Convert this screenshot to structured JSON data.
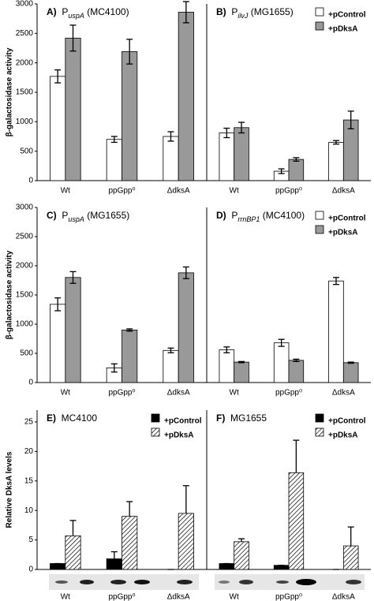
{
  "chart_data": [
    {
      "type": "bar",
      "panel": "A)",
      "title": "P",
      "title_sub": "uspA",
      "title_suffix": "(MC4100)",
      "ylabel": "β-galactosidase activity",
      "categories": [
        "Wt",
        "ppGpp⁰",
        "ΔdksA"
      ],
      "ylim": [
        0,
        3000
      ],
      "yticks": [
        0,
        500,
        1000,
        1500,
        2000,
        2500,
        3000
      ],
      "error_style": "both",
      "series": [
        {
          "color": "#ffffff",
          "values": [
            1770,
            700,
            750
          ],
          "errors": [
            110,
            50,
            80
          ]
        },
        {
          "color": "#999999",
          "values": [
            2420,
            2190,
            2860
          ],
          "errors": [
            220,
            210,
            180
          ]
        }
      ]
    },
    {
      "type": "bar",
      "panel": "B)",
      "title": "P",
      "title_sub": "ilvJ",
      "title_suffix": "(MG1655)",
      "legend": "upper right",
      "categories": [
        "Wt",
        "ppGpp⁰",
        "ΔdksA"
      ],
      "ylim": [
        0,
        3000
      ],
      "error_style": "both",
      "series": [
        {
          "name": "+pControl",
          "color": "#ffffff",
          "values": [
            810,
            160,
            650
          ],
          "errors": [
            80,
            40,
            30
          ]
        },
        {
          "name": "+pDksA",
          "color": "#999999",
          "values": [
            900,
            360,
            1030
          ],
          "errors": [
            90,
            30,
            150
          ]
        }
      ]
    },
    {
      "type": "bar",
      "panel": "C)",
      "title": "P",
      "title_sub": "uspA",
      "title_suffix": "(MG1655)",
      "ylabel": "β-galactosidase activity",
      "categories": [
        "Wt",
        "ppGpp⁰",
        "ΔdksA"
      ],
      "ylim": [
        0,
        3000
      ],
      "yticks": [
        0,
        500,
        1000,
        1500,
        2000,
        2500,
        3000
      ],
      "error_style": "both",
      "series": [
        {
          "color": "#ffffff",
          "values": [
            1340,
            250,
            550
          ],
          "errors": [
            110,
            70,
            40
          ]
        },
        {
          "color": "#999999",
          "values": [
            1800,
            900,
            1880
          ],
          "errors": [
            100,
            20,
            100
          ]
        }
      ]
    },
    {
      "type": "bar",
      "panel": "D)",
      "title": "P",
      "title_sub": "rrnBP1",
      "title_suffix": "(MC4100)",
      "legend": "upper right",
      "categories": [
        "Wt",
        "ppGpp⁰",
        "ΔdksA"
      ],
      "ylim": [
        0,
        3000
      ],
      "error_style": "both",
      "series": [
        {
          "name": "+pControl",
          "color": "#ffffff",
          "values": [
            560,
            680,
            1740
          ],
          "errors": [
            50,
            60,
            60
          ]
        },
        {
          "name": "+pDksA",
          "color": "#999999",
          "values": [
            350,
            380,
            340
          ],
          "errors": [
            10,
            20,
            10
          ]
        }
      ]
    },
    {
      "type": "bar",
      "panel": "E)",
      "title": "MC4100",
      "ylabel": "Relative DksA levels",
      "legend": "upper right",
      "categories": [
        "Wt",
        "ppGpp⁰",
        "ΔdksA"
      ],
      "ylim": [
        0,
        27
      ],
      "yticks": [
        0,
        5,
        10,
        15,
        20,
        25
      ],
      "error_style": "up",
      "series": [
        {
          "name": "+pControl",
          "color": "#000000",
          "values": [
            1.0,
            1.8,
            0
          ],
          "errors": [
            0,
            1.2,
            0
          ]
        },
        {
          "name": "+pDksA",
          "color": "#000000",
          "pattern": "hatch",
          "values": [
            5.7,
            9.0,
            9.5
          ],
          "errors": [
            2.6,
            2.5,
            4.7
          ]
        }
      ]
    },
    {
      "type": "bar",
      "panel": "F)",
      "title": "MG1655",
      "legend": "upper right",
      "categories": [
        "Wt",
        "ppGpp⁰",
        "ΔdksA"
      ],
      "ylim": [
        0,
        27
      ],
      "error_style": "up",
      "series": [
        {
          "name": "+pControl",
          "color": "#000000",
          "values": [
            1.0,
            0.7,
            0
          ],
          "errors": [
            0,
            0,
            0
          ]
        },
        {
          "name": "+pDksA",
          "color": "#000000",
          "pattern": "hatch",
          "values": [
            4.7,
            16.4,
            4.0
          ],
          "errors": [
            0.5,
            5.5,
            3.2
          ]
        }
      ]
    }
  ]
}
